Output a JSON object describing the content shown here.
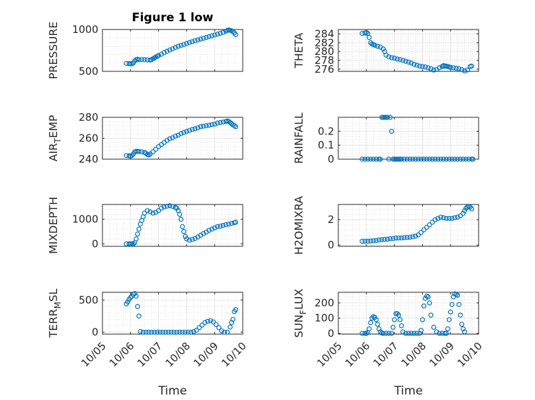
{
  "figure": {
    "title": "Figure 1 low",
    "xlabel": "Time",
    "marker_color": "#0072BD",
    "x_tick_labels": [
      "10/05",
      "10/06",
      "10/07",
      "10/08",
      "10/09",
      "10/10"
    ]
  },
  "chart_data": [
    {
      "type": "scatter",
      "title": "Figure 1 low",
      "xlabel": "",
      "ylabel": "PRESSURE",
      "xlim": [
        "10/05",
        "10/10"
      ],
      "ylim": [
        500,
        1000
      ],
      "yticks": [
        500,
        1000
      ],
      "grid": true,
      "x_days": [
        5.85,
        5.95,
        6.0,
        6.05,
        6.1,
        6.15,
        6.2,
        6.25,
        6.3,
        6.4,
        6.5,
        6.6,
        6.7,
        6.75,
        6.8,
        6.85,
        6.9,
        6.95,
        7.0,
        7.1,
        7.2,
        7.3,
        7.4,
        7.5,
        7.6,
        7.7,
        7.8,
        7.9,
        8.0,
        8.1,
        8.2,
        8.3,
        8.4,
        8.5,
        8.6,
        8.7,
        8.8,
        8.9,
        9.0,
        9.1,
        9.2,
        9.3,
        9.4,
        9.45,
        9.5,
        9.55,
        9.6,
        9.65,
        9.7,
        9.75
      ],
      "values": [
        595,
        592,
        590,
        592,
        600,
        625,
        640,
        645,
        640,
        642,
        640,
        638,
        635,
        640,
        650,
        660,
        670,
        680,
        690,
        705,
        725,
        740,
        755,
        770,
        785,
        800,
        810,
        820,
        832,
        845,
        855,
        865,
        875,
        885,
        895,
        905,
        915,
        925,
        935,
        945,
        955,
        965,
        980,
        990,
        995,
        990,
        985,
        975,
        960,
        940
      ]
    },
    {
      "type": "scatter",
      "title": "",
      "xlabel": "",
      "ylabel": "THETA",
      "xlim": [
        "10/05",
        "10/10"
      ],
      "ylim": [
        275.5,
        285
      ],
      "yticks": [
        276,
        278,
        280,
        282,
        284
      ],
      "grid": true,
      "x_days": [
        5.85,
        5.95,
        6.0,
        6.05,
        6.1,
        6.15,
        6.2,
        6.25,
        6.3,
        6.4,
        6.5,
        6.6,
        6.65,
        6.7,
        6.8,
        6.9,
        7.0,
        7.1,
        7.2,
        7.3,
        7.4,
        7.5,
        7.6,
        7.7,
        7.8,
        7.9,
        8.0,
        8.1,
        8.2,
        8.3,
        8.4,
        8.5,
        8.6,
        8.7,
        8.75,
        8.8,
        8.85,
        8.9,
        8.95,
        9.0,
        9.1,
        9.2,
        9.3,
        9.4,
        9.5,
        9.6,
        9.7,
        9.75
      ],
      "values": [
        284.1,
        284.2,
        284.3,
        284.1,
        283.2,
        282.0,
        281.7,
        281.6,
        281.4,
        281.2,
        281.0,
        280.6,
        280.0,
        279.2,
        278.8,
        278.6,
        278.5,
        278.3,
        278.2,
        278.0,
        277.8,
        277.6,
        277.4,
        277.1,
        276.9,
        276.7,
        276.6,
        276.5,
        276.3,
        276.1,
        275.8,
        275.9,
        276.3,
        276.6,
        276.8,
        276.7,
        276.7,
        276.6,
        276.5,
        276.4,
        276.3,
        276.2,
        276.1,
        275.9,
        275.6,
        275.8,
        276.6,
        276.7
      ]
    },
    {
      "type": "scatter",
      "title": "",
      "xlabel": "",
      "ylabel": "AIR_TEMP",
      "xlim": [
        "10/05",
        "10/10"
      ],
      "ylim": [
        240,
        280
      ],
      "yticks": [
        240,
        260,
        280
      ],
      "grid": true,
      "x_days": [
        5.85,
        5.95,
        6.0,
        6.05,
        6.1,
        6.15,
        6.2,
        6.25,
        6.3,
        6.4,
        6.5,
        6.55,
        6.6,
        6.65,
        6.7,
        6.8,
        6.9,
        7.0,
        7.1,
        7.2,
        7.3,
        7.4,
        7.5,
        7.6,
        7.7,
        7.8,
        7.9,
        8.0,
        8.1,
        8.2,
        8.3,
        8.4,
        8.5,
        8.6,
        8.7,
        8.8,
        8.9,
        9.0,
        9.1,
        9.2,
        9.3,
        9.4,
        9.45,
        9.5,
        9.55,
        9.6,
        9.65,
        9.7,
        9.75
      ],
      "values": [
        243.5,
        243.2,
        243.0,
        243.5,
        245,
        247,
        247.5,
        247.5,
        247.3,
        247,
        246.5,
        245.5,
        244.5,
        244,
        245,
        247,
        249.5,
        252,
        254,
        256,
        258,
        259.5,
        260.5,
        262,
        263,
        264.5,
        265.5,
        266.5,
        267.5,
        268.5,
        269,
        270,
        271,
        271.5,
        272,
        272.5,
        273,
        273.5,
        274.5,
        275,
        275.5,
        276,
        276.5,
        276,
        275,
        274,
        273,
        272,
        271
      ]
    },
    {
      "type": "scatter",
      "title": "",
      "xlabel": "",
      "ylabel": "RAINFALL",
      "xlim": [
        "10/05",
        "10/10"
      ],
      "ylim": [
        0,
        0.3
      ],
      "yticks": [
        0,
        0.1,
        0.2
      ],
      "grid": true,
      "x_days": [
        5.85,
        5.95,
        6.05,
        6.15,
        6.25,
        6.35,
        6.45,
        6.5,
        6.55,
        6.6,
        6.65,
        6.7,
        6.75,
        6.8,
        6.85,
        6.9,
        6.95,
        7.0,
        7.05,
        7.1,
        7.15,
        7.2,
        7.25,
        7.35,
        7.45,
        7.55,
        7.65,
        7.75,
        7.85,
        7.95,
        8.05,
        8.15,
        8.25,
        8.35,
        8.45,
        8.55,
        8.65,
        8.75,
        8.85,
        8.95,
        9.05,
        9.15,
        9.25,
        9.35,
        9.45,
        9.55,
        9.65,
        9.75,
        9.8
      ],
      "values": [
        0,
        0,
        0,
        0,
        0,
        0,
        0,
        0,
        0.3,
        0.3,
        0.3,
        0.3,
        0.3,
        0,
        0.3,
        0.2,
        0,
        0,
        0,
        0,
        0,
        0,
        0,
        0,
        0,
        0,
        0,
        0,
        0,
        0,
        0,
        0,
        0,
        0,
        0,
        0,
        0,
        0,
        0,
        0,
        0,
        0,
        0,
        0,
        0,
        0,
        0,
        0,
        0
      ]
    },
    {
      "type": "scatter",
      "title": "",
      "xlabel": "",
      "ylabel": "MIXDEPTH",
      "xlim": [
        "10/05",
        "10/10"
      ],
      "ylim": [
        -100,
        1600
      ],
      "yticks": [
        0,
        1000
      ],
      "grid": true,
      "x_days": [
        5.85,
        5.95,
        6.0,
        6.05,
        6.1,
        6.15,
        6.2,
        6.25,
        6.3,
        6.35,
        6.4,
        6.45,
        6.5,
        6.6,
        6.7,
        6.8,
        6.9,
        7.0,
        7.1,
        7.2,
        7.3,
        7.4,
        7.5,
        7.6,
        7.65,
        7.7,
        7.75,
        7.8,
        7.85,
        7.9,
        7.95,
        8.0,
        8.1,
        8.2,
        8.3,
        8.4,
        8.5,
        8.6,
        8.7,
        8.8,
        8.9,
        9.0,
        9.1,
        9.2,
        9.3,
        9.4,
        9.5,
        9.6,
        9.7,
        9.75
      ],
      "values": [
        0,
        0,
        0,
        0,
        0,
        50,
        200,
        400,
        600,
        800,
        950,
        1100,
        1250,
        1350,
        1300,
        1250,
        1280,
        1350,
        1450,
        1500,
        1530,
        1550,
        1520,
        1480,
        1450,
        1350,
        1200,
        1000,
        700,
        500,
        300,
        200,
        150,
        180,
        220,
        280,
        350,
        420,
        480,
        550,
        600,
        650,
        700,
        720,
        750,
        780,
        800,
        830,
        860,
        880
      ]
    },
    {
      "type": "scatter",
      "title": "",
      "xlabel": "",
      "ylabel": "H2OMIXRA",
      "xlim": [
        "10/05",
        "10/10"
      ],
      "ylim": [
        -0.1,
        3.2
      ],
      "yticks": [
        0,
        2
      ],
      "grid": true,
      "x_days": [
        5.85,
        5.95,
        6.05,
        6.15,
        6.25,
        6.35,
        6.45,
        6.55,
        6.65,
        6.75,
        6.85,
        6.95,
        7.05,
        7.15,
        7.25,
        7.35,
        7.45,
        7.55,
        7.65,
        7.75,
        7.85,
        7.95,
        8.05,
        8.15,
        8.25,
        8.35,
        8.45,
        8.55,
        8.65,
        8.75,
        8.85,
        8.95,
        9.05,
        9.15,
        9.25,
        9.35,
        9.45,
        9.5,
        9.55,
        9.6,
        9.65,
        9.7,
        9.75
      ],
      "values": [
        0.3,
        0.3,
        0.3,
        0.32,
        0.34,
        0.36,
        0.4,
        0.42,
        0.44,
        0.46,
        0.5,
        0.52,
        0.55,
        0.56,
        0.56,
        0.58,
        0.6,
        0.62,
        0.65,
        0.7,
        0.8,
        1.0,
        1.2,
        1.4,
        1.6,
        1.8,
        2.0,
        2.1,
        2.2,
        2.15,
        2.1,
        2.1,
        2.1,
        2.15,
        2.2,
        2.3,
        2.5,
        2.7,
        2.9,
        3.0,
        3.05,
        3.0,
        2.85
      ]
    },
    {
      "type": "scatter",
      "title": "",
      "xlabel": "Time",
      "ylabel": "TERR_MSL",
      "xlim": [
        "10/05",
        "10/10"
      ],
      "ylim": [
        -30,
        620
      ],
      "yticks": [
        0,
        500
      ],
      "grid": true,
      "x_days": [
        5.85,
        5.9,
        5.95,
        6.0,
        6.05,
        6.1,
        6.15,
        6.2,
        6.25,
        6.3,
        6.35,
        6.45,
        6.55,
        6.65,
        6.75,
        6.85,
        6.95,
        7.05,
        7.15,
        7.25,
        7.35,
        7.45,
        7.55,
        7.65,
        7.75,
        7.85,
        7.95,
        8.05,
        8.15,
        8.25,
        8.35,
        8.45,
        8.55,
        8.65,
        8.75,
        8.85,
        8.95,
        9.05,
        9.15,
        9.25,
        9.35,
        9.45,
        9.55,
        9.6,
        9.65,
        9.7,
        9.75
      ],
      "values": [
        440,
        470,
        510,
        540,
        560,
        590,
        600,
        560,
        400,
        250,
        10,
        0,
        0,
        0,
        0,
        0,
        0,
        0,
        0,
        0,
        0,
        0,
        0,
        0,
        0,
        0,
        0,
        0,
        0,
        10,
        30,
        70,
        110,
        150,
        170,
        180,
        160,
        120,
        70,
        20,
        0,
        0,
        80,
        150,
        200,
        320,
        350
      ]
    },
    {
      "type": "scatter",
      "title": "",
      "xlabel": "Time",
      "ylabel": "SUN_FLUX",
      "xlim": [
        "10/05",
        "10/10"
      ],
      "ylim": [
        -5,
        270
      ],
      "yticks": [
        0,
        100,
        200
      ],
      "grid": true,
      "x_days": [
        5.85,
        5.95,
        6.0,
        6.05,
        6.1,
        6.15,
        6.2,
        6.25,
        6.3,
        6.35,
        6.4,
        6.45,
        6.5,
        6.55,
        6.6,
        6.7,
        6.8,
        6.9,
        6.95,
        7.0,
        7.05,
        7.1,
        7.15,
        7.2,
        7.25,
        7.3,
        7.4,
        7.5,
        7.6,
        7.7,
        7.8,
        7.9,
        7.95,
        8.0,
        8.05,
        8.1,
        8.15,
        8.2,
        8.25,
        8.3,
        8.4,
        8.5,
        8.6,
        8.7,
        8.8,
        8.85,
        8.9,
        8.95,
        9.0,
        9.05,
        9.1,
        9.15,
        9.2,
        9.25,
        9.3,
        9.35,
        9.4,
        9.45,
        9.5
      ],
      "values": [
        0,
        0,
        0,
        5,
        30,
        70,
        100,
        110,
        105,
        90,
        60,
        30,
        10,
        2,
        0,
        0,
        0,
        0,
        40,
        90,
        130,
        130,
        120,
        90,
        50,
        10,
        0,
        0,
        0,
        0,
        0,
        0,
        20,
        90,
        180,
        230,
        245,
        240,
        200,
        120,
        40,
        10,
        0,
        0,
        0,
        0,
        30,
        90,
        140,
        190,
        240,
        260,
        255,
        250,
        190,
        120,
        60,
        30,
        10
      ]
    }
  ]
}
